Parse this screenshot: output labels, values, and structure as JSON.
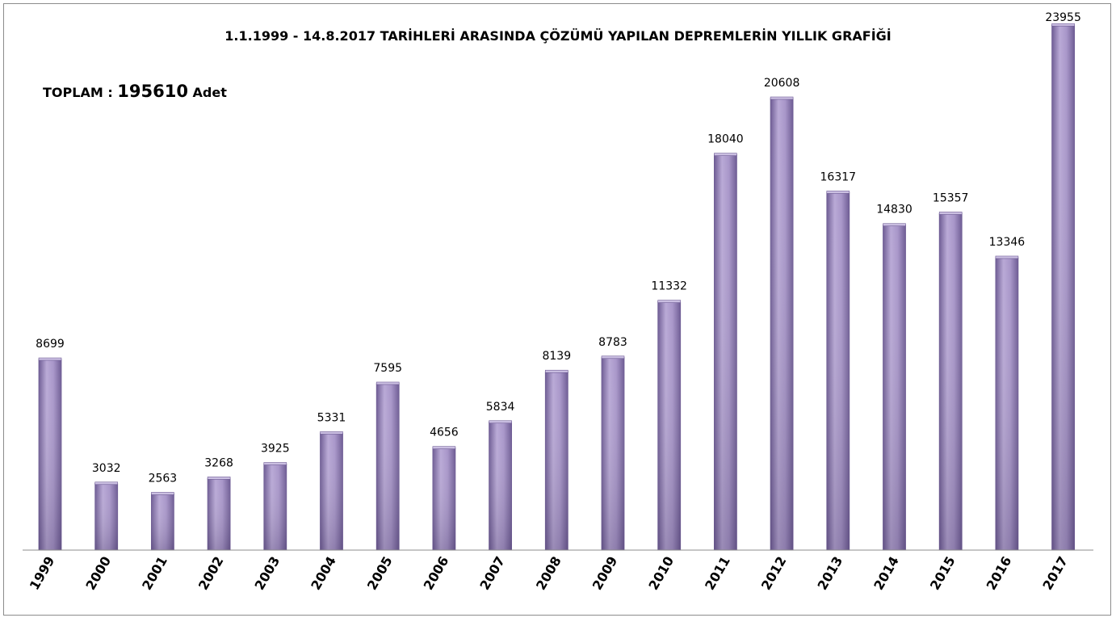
{
  "header": {
    "title": "1.1.1999 - 14.8.2017 TARİHLERİ ARASINDA ÇÖZÜMÜ YAPILAN DEPREMLERİN YILLIK GRAFİĞİ",
    "total_label": "TOPLAM :",
    "total_value": "195610",
    "total_unit": "Adet"
  },
  "chart_data": {
    "type": "bar",
    "title": "1.1.1999 - 14.8.2017 TARİHLERİ ARASINDA ÇÖZÜMÜ YAPILAN DEPREMLERİN YILLIK GRAFİĞİ",
    "categories": [
      "1999",
      "2000",
      "2001",
      "2002",
      "2003",
      "2004",
      "2005",
      "2006",
      "2007",
      "2008",
      "2009",
      "2010",
      "2011",
      "2012",
      "2013",
      "2014",
      "2015",
      "2016",
      "2017"
    ],
    "values": [
      8699,
      3032,
      2563,
      3268,
      3925,
      5331,
      7595,
      4656,
      5834,
      8139,
      8783,
      11332,
      18040,
      20608,
      16317,
      14830,
      15357,
      13346,
      23955
    ],
    "ylim": [
      0,
      24000
    ],
    "grid": false,
    "legend": "none",
    "colors": {
      "bar_light": "#b9a9d6",
      "bar_mid": "#9b89bf",
      "bar_dark": "#6e5c94",
      "axis": "#8c8c8c"
    }
  }
}
